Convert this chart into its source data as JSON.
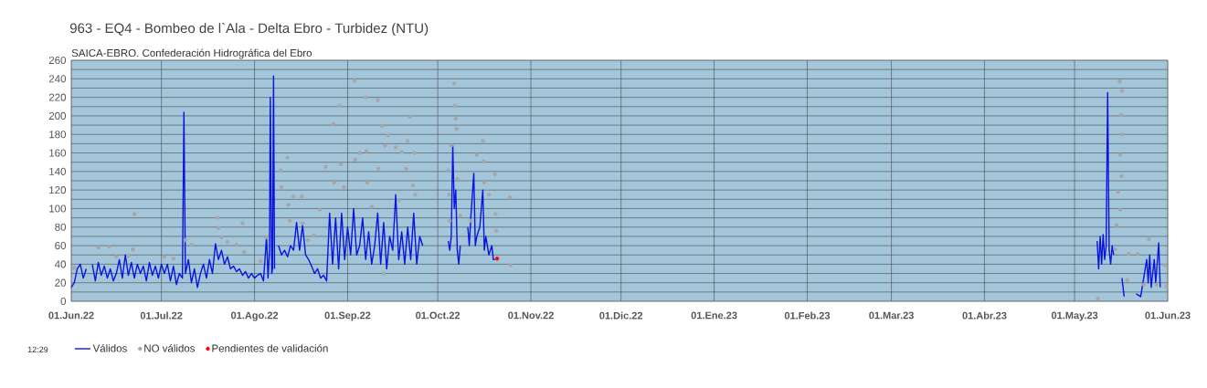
{
  "chart_data": {
    "type": "line",
    "title": "963 - EQ4 - Bombeo de l`Ala - Delta Ebro - Turbidez (NTU)",
    "subtitle": "SAICA-EBRO. Confederación Hidrográfica del Ebro",
    "annotations": [
      "12:29"
    ],
    "xlim": [
      "2022-06-01",
      "2023-06-01"
    ],
    "xticks": [
      {
        "value": "2022-06-01",
        "label": "01.Jun.22"
      },
      {
        "value": "2022-07-01",
        "label": "01.Jul.22"
      },
      {
        "value": "2022-08-01",
        "label": "01.Ago.22"
      },
      {
        "value": "2022-09-01",
        "label": "01.Sep.22"
      },
      {
        "value": "2022-10-01",
        "label": "01.Oct.22"
      },
      {
        "value": "2022-11-01",
        "label": "01.Nov.22"
      },
      {
        "value": "2022-12-01",
        "label": "01.Dic.22"
      },
      {
        "value": "2023-01-01",
        "label": "01.Ene.23"
      },
      {
        "value": "2023-02-01",
        "label": "01.Feb.23"
      },
      {
        "value": "2023-03-01",
        "label": "01.Mar.23"
      },
      {
        "value": "2023-04-01",
        "label": "01.Abr.23"
      },
      {
        "value": "2023-05-01",
        "label": "01.May.23"
      },
      {
        "value": "2023-06-01",
        "label": "01.Jun.23"
      }
    ],
    "ylim": [
      0,
      260
    ],
    "yticks": [
      0,
      20,
      40,
      60,
      80,
      100,
      120,
      140,
      160,
      180,
      200,
      220,
      240,
      260
    ],
    "grid": true,
    "legend": "bottom",
    "series": [
      {
        "name": "Válidos",
        "color": "#0a14e0",
        "marker": "none",
        "x": [
          "2022-06-01",
          "2022-06-02",
          "2022-06-03",
          "2022-06-04",
          "2022-06-05",
          "2022-06-06",
          "2022-06-07",
          "2022-06-08",
          "2022-06-09",
          "2022-06-10",
          "2022-06-11",
          "2022-06-12",
          "2022-06-13",
          "2022-06-14",
          "2022-06-15",
          "2022-06-16",
          "2022-06-17",
          "2022-06-18",
          "2022-06-19",
          "2022-06-20",
          "2022-06-21",
          "2022-06-22",
          "2022-06-23",
          "2022-06-24",
          "2022-06-25",
          "2022-06-26",
          "2022-06-27",
          "2022-06-28",
          "2022-06-29",
          "2022-06-30",
          "2022-07-01",
          "2022-07-02",
          "2022-07-03",
          "2022-07-04",
          "2022-07-05",
          "2022-07-06",
          "2022-07-07",
          "2022-07-08",
          "2022-07-08T12:00",
          "2022-07-09",
          "2022-07-10",
          "2022-07-11",
          "2022-07-12",
          "2022-07-13",
          "2022-07-14",
          "2022-07-15",
          "2022-07-16",
          "2022-07-17",
          "2022-07-18",
          "2022-07-19",
          "2022-07-20",
          "2022-07-21",
          "2022-07-22",
          "2022-07-23",
          "2022-07-24",
          "2022-07-25",
          "2022-07-26",
          "2022-07-27",
          "2022-07-28",
          "2022-07-29",
          "2022-07-30",
          "2022-07-31",
          "2022-08-01",
          "2022-08-02",
          "2022-08-03",
          "2022-08-04",
          "2022-08-05",
          "2022-08-05T12:00",
          "2022-08-06",
          "2022-08-06T06:00",
          "2022-08-06T18:00",
          "2022-08-07",
          "2022-08-07T08:00",
          "2022-08-07T16:00",
          "2022-08-08",
          "2022-08-09",
          "2022-08-10",
          "2022-08-11",
          "2022-08-12",
          "2022-08-13",
          "2022-08-14",
          "2022-08-15",
          "2022-08-16",
          "2022-08-17",
          "2022-08-18",
          "2022-08-19",
          "2022-08-20",
          "2022-08-21",
          "2022-08-22",
          "2022-08-23",
          "2022-08-24",
          "2022-08-25",
          "2022-08-26",
          "2022-08-27",
          "2022-08-28",
          "2022-08-29",
          "2022-08-30",
          "2022-08-31",
          "2022-09-01",
          "2022-09-02",
          "2022-09-03",
          "2022-09-04",
          "2022-09-05",
          "2022-09-06",
          "2022-09-07",
          "2022-09-08",
          "2022-09-09",
          "2022-09-10",
          "2022-09-11",
          "2022-09-12",
          "2022-09-13",
          "2022-09-14",
          "2022-09-15",
          "2022-09-16",
          "2022-09-17",
          "2022-09-18",
          "2022-09-19",
          "2022-09-20",
          "2022-09-21",
          "2022-09-22",
          "2022-09-23",
          "2022-09-24",
          "2022-09-25",
          "2022-09-26",
          "2022-09-26T12:00",
          "2022-10-04T12:00",
          "2022-10-05",
          "2022-10-05T12:00",
          "2022-10-06",
          "2022-10-06T12:00",
          "2022-10-07",
          "2022-10-07T12:00",
          "2022-10-08",
          "2022-10-08T12:00",
          "2022-10-09",
          "2022-10-11",
          "2022-10-11T12:00",
          "2022-10-12",
          "2022-10-13",
          "2022-10-13T12:00",
          "2022-10-14",
          "2022-10-15",
          "2022-10-16",
          "2022-10-16T12:00",
          "2022-10-17",
          "2022-10-18",
          "2022-10-19",
          "2022-10-19T12:00",
          "2022-10-20",
          "2022-10-20T06:00",
          "2023-05-08T12:00",
          "2023-05-09",
          "2023-05-09T12:00",
          "2023-05-10",
          "2023-05-10T12:00",
          "2023-05-11",
          "2023-05-11T12:00",
          "2023-05-12",
          "2023-05-12T12:00",
          "2023-05-13",
          "2023-05-13T12:00",
          "2023-05-14",
          "2023-05-14T12:00",
          "2023-05-16T18:00",
          "2023-05-17T12:00",
          "2023-05-18",
          "2023-05-21T12:00",
          "2023-05-23",
          "2023-05-25",
          "2023-05-25T12:00",
          "2023-05-26",
          "2023-05-26T12:00",
          "2023-05-27T12:00",
          "2023-05-28",
          "2023-05-29",
          "2023-05-29T12:00"
        ],
        "values": [
          15,
          20,
          35,
          40,
          25,
          35,
          null,
          40,
          22,
          42,
          28,
          38,
          25,
          35,
          22,
          30,
          45,
          25,
          50,
          28,
          42,
          25,
          40,
          30,
          38,
          22,
          42,
          28,
          38,
          25,
          40,
          30,
          40,
          22,
          38,
          18,
          30,
          25,
          204,
          30,
          45,
          20,
          35,
          15,
          30,
          40,
          25,
          45,
          30,
          62,
          45,
          55,
          40,
          48,
          35,
          38,
          32,
          35,
          28,
          32,
          25,
          30,
          25,
          28,
          30,
          22,
          70,
          25,
          55,
          220,
          30,
          35,
          243,
          35,
          null,
          60,
          50,
          55,
          48,
          60,
          55,
          85,
          55,
          82,
          50,
          45,
          38,
          30,
          35,
          25,
          28,
          22,
          95,
          40,
          90,
          35,
          95,
          45,
          80,
          50,
          100,
          50,
          60,
          90,
          45,
          75,
          40,
          60,
          95,
          40,
          85,
          35,
          70,
          55,
          115,
          45,
          75,
          40,
          80,
          45,
          95,
          40,
          70,
          60,
          null,
          65,
          55,
          70,
          168,
          100,
          120,
          55,
          40,
          60,
          null,
          80,
          60,
          90,
          138,
          60,
          70,
          80,
          120,
          55,
          70,
          50,
          60,
          45,
          45,
          null,
          65,
          35,
          70,
          40,
          72,
          45,
          60,
          225,
          55,
          40,
          60,
          50,
          null,
          25,
          5,
          null,
          8,
          5,
          45,
          20,
          50,
          15,
          45,
          20,
          63,
          15
        ]
      },
      {
        "name": "NO válidos",
        "type": "scatter",
        "color": "#a6a6a6",
        "marker": "circle",
        "x": [
          "2022-06-02",
          "2022-06-10",
          "2022-06-13T12:00",
          "2022-06-16",
          "2022-06-22",
          "2022-06-21T12:00",
          "2022-06-20",
          "2022-07-02",
          "2022-07-05",
          "2022-07-11",
          "2022-07-09",
          "2022-07-19T12:00",
          "2022-07-20",
          "2022-07-21",
          "2022-07-23",
          "2022-07-28",
          "2022-07-26",
          "2022-07-28T12:00",
          "2022-08-03",
          "2022-08-05",
          "2022-08-09T18:00",
          "2022-08-10",
          "2022-08-12",
          "2022-08-12T06:00",
          "2022-08-12T18:00",
          "2022-08-14",
          "2022-08-16T18:00",
          "2022-08-17",
          "2022-08-18T18:00",
          "2022-08-20T18:00",
          "2022-08-22T18:00",
          "2022-08-24T18:00",
          "2022-08-27T06:00",
          "2022-08-29T06:00",
          "2022-08-27T12:00",
          "2022-08-29T18:00",
          "2022-08-30T18:00",
          "2022-09-03T06:00",
          "2022-09-03T12:00",
          "2022-09-05",
          "2022-09-07",
          "2022-09-07T06:00",
          "2022-09-07T12:00",
          "2022-09-11",
          "2022-09-12T12:00",
          "2022-09-11T06:00",
          "2022-09-14T12:00",
          "2022-09-13T12:00",
          "2022-09-17",
          "2022-09-19",
          "2022-09-20T12:00",
          "2022-09-21",
          "2022-09-21T18:00",
          "2022-09-23T06:00",
          "2022-09-22T18:00",
          "2022-09-23T12:00",
          "2022-09-13",
          "2022-09-09",
          "2022-09-18",
          "2022-10-06T12:00",
          "2022-10-06T18:00",
          "2022-10-07",
          "2022-10-07T06:00",
          "2022-10-05T12:00",
          "2022-10-04T12:00",
          "2022-10-04T18:00",
          "2022-10-05",
          "2022-10-07T12:00",
          "2022-10-08T12:00",
          "2022-10-12",
          "2022-10-14",
          "2022-10-16",
          "2022-10-16T06:00",
          "2022-10-16T12:00",
          "2022-10-20",
          "2022-10-18",
          "2022-10-20T06:00",
          "2022-10-20T12:00",
          "2022-10-25",
          "2022-10-25T06:00",
          "2023-05-16",
          "2023-05-16T12:00",
          "2023-05-16T03:00",
          "2023-05-15T12:00",
          "2023-05-15",
          "2023-05-14T12:00",
          "2023-05-16T18:00",
          "2023-05-16T20:00",
          "2023-05-16T14:00",
          "2023-05-16T06:00",
          "2023-05-19",
          "2023-05-22",
          "2023-05-25T18:00",
          "2023-05-24",
          "2023-05-18T12:00",
          "2023-05-08T18:00",
          "2023-05-31",
          "2023-05-31T12:00",
          "2023-05-28T06:00"
        ],
        "values": [
          36,
          58,
          59,
          48,
          94,
          56,
          49,
          48,
          46,
          61,
          66,
          90,
          79,
          69,
          64,
          84,
          61,
          53,
          43,
          69,
          141,
          123,
          155,
          104,
          87,
          113,
          113,
          84,
          66,
          71,
          99,
          145,
          191,
          211,
          128,
          148,
          123,
          238,
          153,
          160,
          220,
          162,
          128,
          217,
          189,
          143,
          179,
          168,
          166,
          161,
          143,
          173,
          199,
          160,
          125,
          115,
          30,
          102,
          109,
          235,
          211,
          197,
          186,
          168,
          141,
          115,
          87,
          132,
          92,
          87,
          158,
          173,
          151,
          128,
          137,
          115,
          94,
          76,
          112,
          39,
          237,
          201,
          158,
          118,
          82,
          56,
          227,
          180,
          135,
          99,
          51,
          51,
          67,
          18,
          23,
          3,
          39,
          16,
          18
        ]
      },
      {
        "name": "Pendientes de validación",
        "type": "scatter",
        "color": "#ff0000",
        "marker": "circle",
        "x": [
          "2022-10-20T18:00"
        ],
        "values": [
          46
        ]
      }
    ]
  }
}
